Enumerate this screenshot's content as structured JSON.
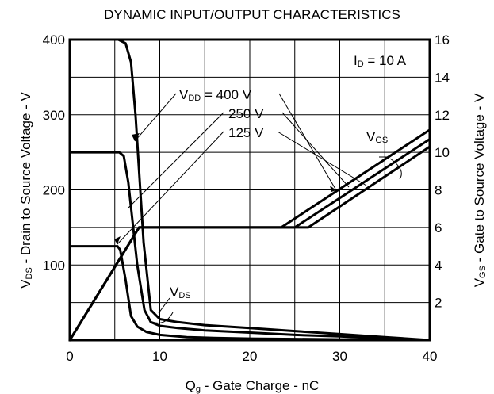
{
  "chart_data": {
    "type": "line",
    "title": "DYNAMIC INPUT/OUTPUT CHARACTERISTICS",
    "xlabel": {
      "main": "Q",
      "sub": "g",
      "rest": " - Gate Charge - nC"
    },
    "ylabel_left": {
      "main": "V",
      "sub": "DS",
      "rest": " - Drain to Source Voltage - V"
    },
    "ylabel_right": {
      "main": "V",
      "sub": "GS",
      "rest": " - Gate to Source Voltage - V"
    },
    "xlim": [
      0,
      40
    ],
    "ylim_left": [
      0,
      400
    ],
    "ylim_right": [
      0,
      16
    ],
    "x_ticks": [
      "0",
      "10",
      "20",
      "30",
      "40"
    ],
    "y_left_ticks": [
      "100",
      "200",
      "300",
      "400"
    ],
    "y_right_ticks": [
      "2",
      "4",
      "6",
      "8",
      "10",
      "12",
      "14",
      "16"
    ],
    "grid": true,
    "condition": {
      "main": "I",
      "sub": "D",
      "rest": " = 10 A"
    },
    "vdd_labels": [
      {
        "main": "V",
        "sub": "DD",
        "rest": " = 400 V"
      },
      {
        "main": "",
        "sub": "",
        "rest": "250 V"
      },
      {
        "main": "",
        "sub": "",
        "rest": "125 V"
      }
    ],
    "vgs_label": {
      "main": "V",
      "sub": "GS"
    },
    "vds_label": {
      "main": "V",
      "sub": "DS"
    },
    "series": [
      {
        "name": "VDS @ VDD = 400 V",
        "axis": "left",
        "x": [
          0,
          5.4,
          6.2,
          6.8,
          7.3,
          8.2,
          9.0,
          10.0,
          12,
          15,
          20,
          25,
          30,
          35,
          40
        ],
        "y": [
          400,
          400,
          395,
          370,
          300,
          130,
          40,
          28,
          24,
          20,
          16,
          12,
          8,
          4,
          0
        ]
      },
      {
        "name": "VDS @ VDD = 250 V",
        "axis": "left",
        "x": [
          0,
          5.5,
          6.0,
          6.5,
          7.5,
          8.3,
          9.0,
          10,
          12,
          15,
          20,
          25,
          30,
          35,
          40
        ],
        "y": [
          250,
          250,
          245,
          210,
          100,
          40,
          24,
          19,
          16,
          13,
          10,
          7,
          5,
          2,
          0
        ]
      },
      {
        "name": "VDS @ VDD = 125 V",
        "axis": "left",
        "x": [
          0,
          5.3,
          5.6,
          6.2,
          6.8,
          7.5,
          8.5,
          10,
          13,
          16,
          20,
          25,
          30,
          35,
          40
        ],
        "y": [
          125,
          125,
          120,
          80,
          32,
          18,
          11,
          7,
          4,
          3,
          2,
          1.5,
          1,
          0.5,
          0
        ]
      },
      {
        "name": "VGS @ VDD = 400 V",
        "axis": "right",
        "x": [
          0,
          7.7,
          26.5,
          40
        ],
        "y": [
          0,
          6,
          6,
          10.3
        ]
      },
      {
        "name": "VGS @ VDD = 250 V",
        "axis": "right",
        "x": [
          0,
          7.7,
          25.0,
          40
        ],
        "y": [
          0,
          6,
          6,
          10.7
        ]
      },
      {
        "name": "VGS @ VDD = 125 V",
        "axis": "right",
        "x": [
          0,
          7.7,
          23.5,
          40
        ],
        "y": [
          0,
          6,
          6,
          11.2
        ]
      }
    ]
  }
}
